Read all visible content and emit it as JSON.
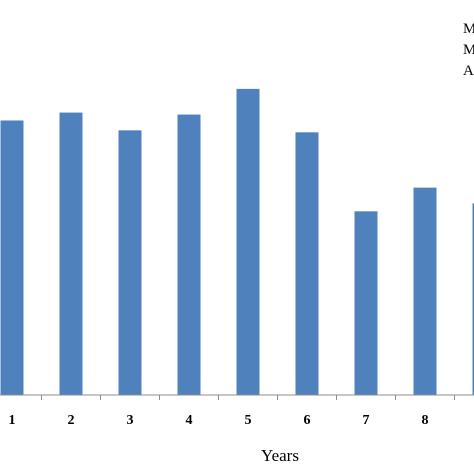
{
  "chart_data": {
    "type": "bar",
    "xlabel": "Years",
    "categories": [
      "1",
      "2",
      "3",
      "4",
      "5",
      "6",
      "7",
      "8"
    ],
    "values": [
      69.5,
      71.5,
      67.0,
      71.0,
      77.5,
      66.5,
      46.5,
      52.5
    ],
    "ylim": [
      0,
      100
    ],
    "bar_color": "#4f81bd",
    "partial_next_bar_value": 48.5,
    "grid": false,
    "legend_fragments": [
      "M",
      "M",
      "A"
    ],
    "legend": "top-right"
  }
}
